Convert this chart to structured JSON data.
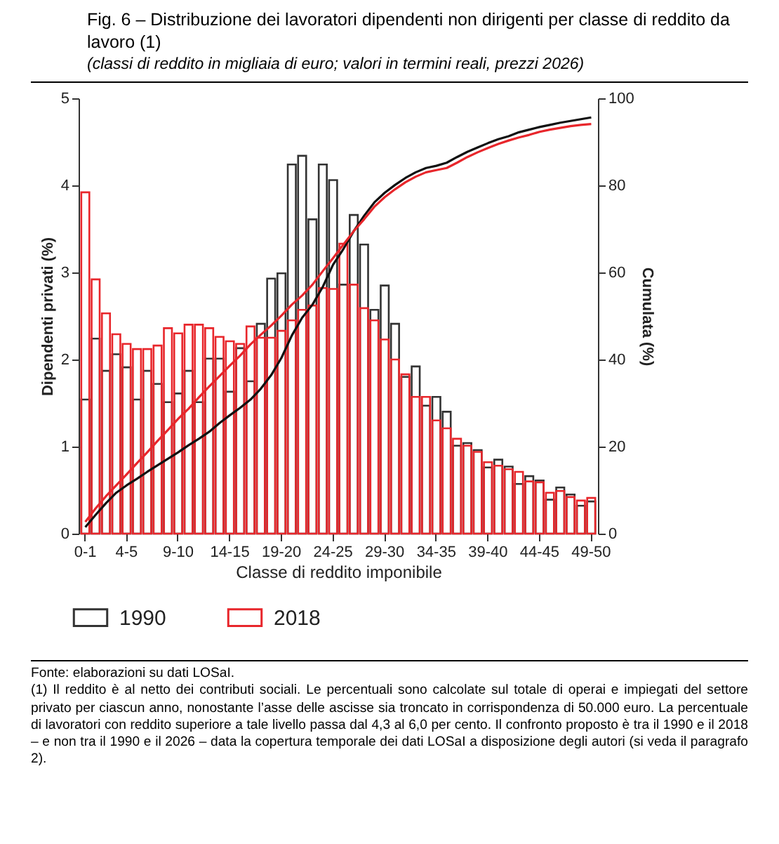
{
  "chart_data": {
    "type": "bar",
    "title": "Fig. 6 – Distribuzione dei lavoratori dipendenti non dirigenti per classe di reddito da lavoro (1)",
    "subtitle": "(classi di reddito in migliaia di euro; valori in termini reali, prezzi 2026)",
    "xlabel": "Classe di reddito imponibile",
    "ylabel": "Dipendenti privati (%)",
    "y2label": "Cumulata (%)",
    "categories": [
      "0-1",
      null,
      null,
      null,
      "4-5",
      null,
      null,
      null,
      null,
      "9-10",
      null,
      null,
      null,
      null,
      "14-15",
      null,
      null,
      null,
      null,
      "19-20",
      null,
      null,
      null,
      null,
      "24-25",
      null,
      null,
      null,
      null,
      "29-30",
      null,
      null,
      null,
      null,
      "34-35",
      null,
      null,
      null,
      null,
      "39-40",
      null,
      null,
      null,
      null,
      "44-45",
      null,
      null,
      null,
      null,
      "49-50"
    ],
    "series": [
      {
        "name": "1990",
        "color": "#333333",
        "values": [
          1.54,
          2.24,
          1.87,
          2.06,
          1.91,
          1.54,
          1.87,
          1.72,
          1.51,
          1.61,
          1.87,
          1.51,
          2.01,
          2.01,
          1.63,
          2.13,
          1.75,
          2.41,
          2.93,
          2.99,
          4.24,
          4.34,
          3.61,
          4.24,
          4.06,
          2.86,
          3.66,
          3.32,
          2.57,
          2.85,
          2.41,
          1.8,
          1.92,
          1.47,
          1.57,
          1.4,
          1.01,
          1.04,
          0.96,
          0.76,
          0.85,
          0.77,
          0.57,
          0.66,
          0.61,
          0.39,
          0.53,
          0.45,
          0.32,
          0.37
        ]
      },
      {
        "name": "2018",
        "color": "#e8262b",
        "values": [
          3.92,
          2.92,
          2.53,
          2.29,
          2.18,
          2.12,
          2.12,
          2.16,
          2.36,
          2.3,
          2.4,
          2.4,
          2.36,
          2.26,
          2.21,
          2.18,
          2.38,
          2.25,
          2.25,
          2.33,
          2.45,
          2.57,
          2.62,
          2.82,
          2.81,
          3.33,
          2.86,
          2.59,
          2.45,
          2.23,
          2.0,
          1.83,
          1.57,
          1.57,
          1.3,
          1.21,
          1.09,
          1.01,
          0.94,
          0.82,
          0.78,
          0.74,
          0.71,
          0.6,
          0.59,
          0.47,
          0.49,
          0.42,
          0.38,
          0.41
        ]
      },
      {
        "type": "line",
        "axis": "y2",
        "color": "#111111",
        "values": [
          1.5,
          4.3,
          7.0,
          9.4,
          11.1,
          12.6,
          14.2,
          15.7,
          17.2,
          18.7,
          20.3,
          21.8,
          23.4,
          25.4,
          27.2,
          28.9,
          30.8,
          33.3,
          36.4,
          40.4,
          45.5,
          49.6,
          52.6,
          56.7,
          61.8,
          65.4,
          69.5,
          73.0,
          76.1,
          78.3,
          80.1,
          81.7,
          83.0,
          84.0,
          84.5,
          85.2,
          86.5,
          87.7,
          88.7,
          89.7,
          90.6,
          91.3,
          92.2,
          92.8,
          93.4,
          93.9,
          94.4,
          94.8,
          95.2,
          95.6
        ]
      },
      {
        "type": "line",
        "axis": "y2",
        "color": "#e8262b",
        "values": [
          2.7,
          5.8,
          8.6,
          11.1,
          13.6,
          16.2,
          18.7,
          21.3,
          23.8,
          26.4,
          28.7,
          31.3,
          33.8,
          36.2,
          38.6,
          40.9,
          43.5,
          45.7,
          47.8,
          50.1,
          52.6,
          54.7,
          57.2,
          60.3,
          63.3,
          66.4,
          69.5,
          72.2,
          75.1,
          77.3,
          79.1,
          80.7,
          82.0,
          83.0,
          83.5,
          84.0,
          85.2,
          86.5,
          87.6,
          88.6,
          89.5,
          90.3,
          91.0,
          91.6,
          92.3,
          92.8,
          93.2,
          93.6,
          93.9,
          94.1
        ]
      }
    ],
    "ylim": [
      0,
      5
    ],
    "yticks": [
      0,
      1,
      2,
      3,
      4,
      5
    ],
    "y2lim": [
      0,
      100
    ],
    "y2ticks": [
      0,
      20,
      40,
      60,
      80,
      100
    ],
    "legend": "bottom",
    "annotations": [
      "Fonte: elaborazioni su dati LOSaI.",
      "(1) Il reddito è al netto dei contributi sociali. Le percentuali sono calcolate sul totale di operai e impiegati del settore privato per ciascun anno, nonostante l’asse delle ascisse sia troncato in corrispondenza di 50.000 euro. La percentuale di lavoratori con reddito superiore a tale livello passa dal 4,3 al 6,0 per cento. Il confronto proposto è tra il 1990 e il 2018 – e non tra il 1990 e il 2026 – data la copertura temporale dei dati LOSaI a disposizione degli autori (si veda il paragrafo 2)."
    ]
  }
}
